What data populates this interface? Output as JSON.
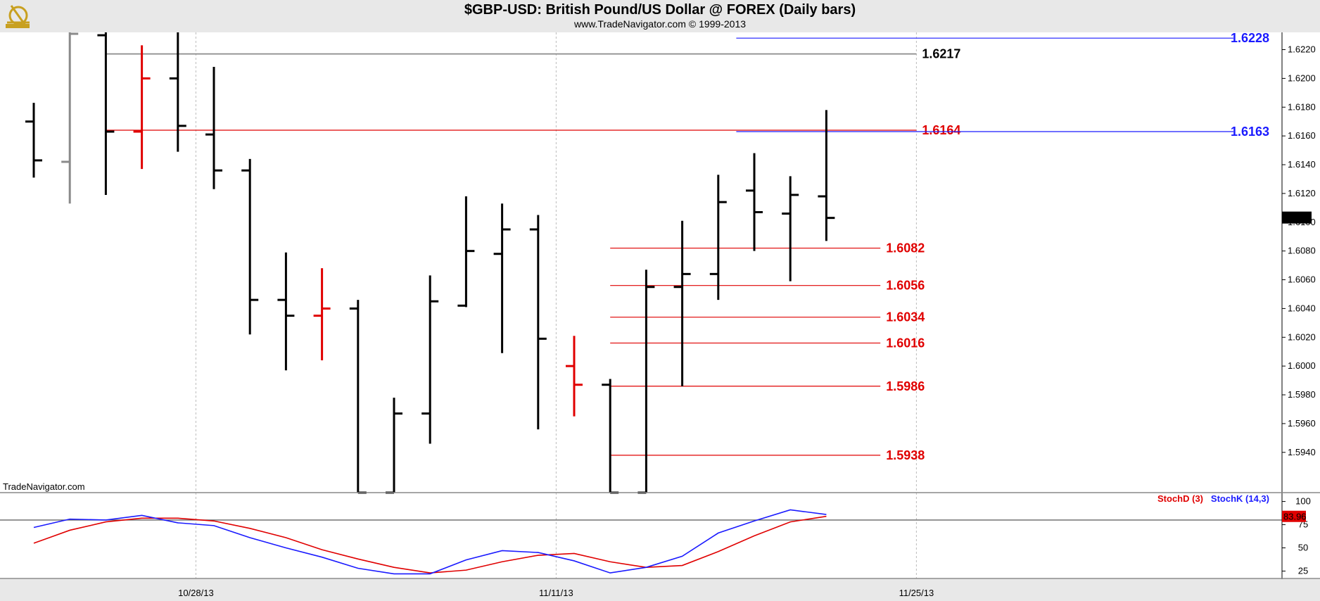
{
  "header": {
    "title": "$GBP-USD:  British Pound/US Dollar @ FOREX  (Daily bars)",
    "subtitle": "www.TradeNavigator.com © 1999-2013"
  },
  "watermark": "TradeNavigator.com",
  "colors": {
    "up": "#000000",
    "down": "#e00000",
    "grey": "#8a8a8a",
    "blue": "#1a1aff",
    "red": "#e00000",
    "black": "#000000"
  },
  "chart_data": [
    {
      "type": "ohlc",
      "title": "$GBP-USD:  British Pound/US Dollar @ FOREX  (Daily bars)",
      "ylim": [
        1.5912,
        1.6232
      ],
      "y_ticks": [
        "1.5940",
        "1.5960",
        "1.5980",
        "1.6000",
        "1.6020",
        "1.6040",
        "1.6060",
        "1.6080",
        "1.6100",
        "1.6120",
        "1.6140",
        "1.6160",
        "1.6180",
        "1.6200",
        "1.6220"
      ],
      "x_labels": [
        {
          "label": "10/28/13",
          "index": 4.5
        },
        {
          "label": "11/11/13",
          "index": 14.5
        },
        {
          "label": "11/25/13",
          "index": 24.5
        }
      ],
      "bars": [
        {
          "i": 0,
          "o": 1.617,
          "h": 1.6183,
          "l": 1.6131,
          "c": 1.6143,
          "color": "black"
        },
        {
          "i": 1,
          "o": 1.6142,
          "h": 1.6232,
          "l": 1.6113,
          "c": 1.6231,
          "color": "grey"
        },
        {
          "i": 2,
          "o": 1.623,
          "h": 1.6232,
          "l": 1.6119,
          "c": 1.6163,
          "color": "black"
        },
        {
          "i": 3,
          "o": 1.6163,
          "h": 1.6223,
          "l": 1.6137,
          "c": 1.62,
          "color": "red"
        },
        {
          "i": 4,
          "o": 1.62,
          "h": 1.6232,
          "l": 1.6149,
          "c": 1.6167,
          "color": "black"
        },
        {
          "i": 5,
          "o": 1.6161,
          "h": 1.6208,
          "l": 1.6123,
          "c": 1.6136,
          "color": "black"
        },
        {
          "i": 6,
          "o": 1.6136,
          "h": 1.6144,
          "l": 1.6022,
          "c": 1.6046,
          "color": "black"
        },
        {
          "i": 7,
          "o": 1.6046,
          "h": 1.6079,
          "l": 1.5997,
          "c": 1.6035,
          "color": "black"
        },
        {
          "i": 8,
          "o": 1.6035,
          "h": 1.6068,
          "l": 1.6004,
          "c": 1.604,
          "color": "red"
        },
        {
          "i": 9,
          "o": 1.604,
          "h": 1.6046,
          "l": 1.5912,
          "c": 1.5912,
          "color": "black"
        },
        {
          "i": 10,
          "o": 1.5912,
          "h": 1.5978,
          "l": 1.5912,
          "c": 1.5967,
          "color": "black"
        },
        {
          "i": 11,
          "o": 1.5967,
          "h": 1.6063,
          "l": 1.5946,
          "c": 1.6045,
          "color": "black"
        },
        {
          "i": 12,
          "o": 1.6042,
          "h": 1.6118,
          "l": 1.6041,
          "c": 1.608,
          "color": "black"
        },
        {
          "i": 13,
          "o": 1.6078,
          "h": 1.6113,
          "l": 1.6009,
          "c": 1.6095,
          "color": "black"
        },
        {
          "i": 14,
          "o": 1.6095,
          "h": 1.6105,
          "l": 1.5956,
          "c": 1.6019,
          "color": "black"
        },
        {
          "i": 15,
          "o": 1.6,
          "h": 1.6021,
          "l": 1.5965,
          "c": 1.5987,
          "color": "red"
        },
        {
          "i": 16,
          "o": 1.5987,
          "h": 1.5991,
          "l": 1.5912,
          "c": 1.5912,
          "color": "black"
        },
        {
          "i": 17,
          "o": 1.5912,
          "h": 1.6067,
          "l": 1.5912,
          "c": 1.6055,
          "color": "black"
        },
        {
          "i": 18,
          "o": 1.6055,
          "h": 1.6101,
          "l": 1.5986,
          "c": 1.6064,
          "color": "black"
        },
        {
          "i": 19,
          "o": 1.6064,
          "h": 1.6133,
          "l": 1.6046,
          "c": 1.6114,
          "color": "black"
        },
        {
          "i": 20,
          "o": 1.6122,
          "h": 1.6148,
          "l": 1.608,
          "c": 1.6107,
          "color": "black"
        },
        {
          "i": 21,
          "o": 1.6106,
          "h": 1.6132,
          "l": 1.6059,
          "c": 1.6119,
          "color": "black"
        },
        {
          "i": 22,
          "o": 1.6118,
          "h": 1.6178,
          "l": 1.6087,
          "c": 1.6103,
          "color": "black"
        }
      ],
      "levels": [
        {
          "value": 1.6228,
          "label": "1.6228",
          "color": "blue",
          "from": 19.5,
          "to": 33.3,
          "label_at": "right"
        },
        {
          "value": 1.6217,
          "label": "1.6217",
          "color": "grey",
          "from": 2.0,
          "to": 24.5,
          "label_at": "end"
        },
        {
          "value": 1.6164,
          "label": "1.6164",
          "color": "red",
          "from": 2.0,
          "to": 24.5,
          "label_at": "end"
        },
        {
          "value": 1.6163,
          "label": "1.6163",
          "color": "blue",
          "from": 19.5,
          "to": 33.3,
          "label_at": "right"
        },
        {
          "value": 1.6082,
          "label": "1.6082",
          "color": "red",
          "from": 16.0,
          "to": 23.5,
          "label_at": "end"
        },
        {
          "value": 1.6056,
          "label": "1.6056",
          "color": "red",
          "from": 16.0,
          "to": 23.5,
          "label_at": "end"
        },
        {
          "value": 1.6034,
          "label": "1.6034",
          "color": "red",
          "from": 16.0,
          "to": 23.5,
          "label_at": "end"
        },
        {
          "value": 1.6016,
          "label": "1.6016",
          "color": "red",
          "from": 16.0,
          "to": 23.5,
          "label_at": "end"
        },
        {
          "value": 1.5986,
          "label": "1.5986",
          "color": "red",
          "from": 16.0,
          "to": 23.5,
          "label_at": "end"
        },
        {
          "value": 1.5938,
          "label": "1.5938",
          "color": "red",
          "from": 16.0,
          "to": 23.5,
          "label_at": "end"
        }
      ],
      "last_price": {
        "value": 1.6103,
        "label": "1.6103"
      }
    },
    {
      "type": "line",
      "ylim": [
        17,
        105
      ],
      "y_ticks": [
        "25",
        "50",
        "75",
        "100"
      ],
      "reference_line": 80,
      "series": [
        {
          "name": "StochD (3)",
          "color": "red",
          "values": [
            55,
            69,
            78,
            82,
            82,
            79,
            71,
            61,
            48,
            38,
            29,
            23,
            26,
            35,
            42,
            44,
            35,
            29,
            31,
            46,
            63,
            78,
            84
          ]
        },
        {
          "name": "StochK (14,3)",
          "color": "blue",
          "values": [
            72,
            81,
            80,
            85,
            77,
            74,
            61,
            50,
            40,
            28,
            22,
            22,
            37,
            47,
            45,
            36,
            23,
            29,
            41,
            66,
            79,
            91,
            86
          ]
        }
      ],
      "last_value": {
        "value": 83.96,
        "label": "83.96"
      }
    }
  ]
}
